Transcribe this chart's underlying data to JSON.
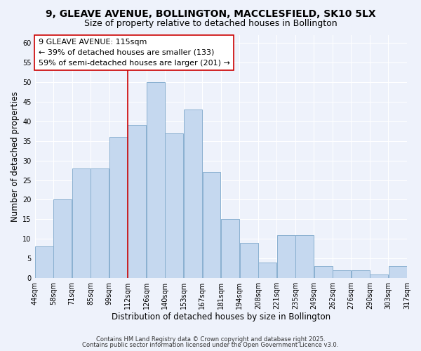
{
  "title": "9, GLEAVE AVENUE, BOLLINGTON, MACCLESFIELD, SK10 5LX",
  "subtitle": "Size of property relative to detached houses in Bollington",
  "xlabel": "Distribution of detached houses by size in Bollington",
  "ylabel": "Number of detached properties",
  "bar_labels": [
    "44sqm",
    "58sqm",
    "71sqm",
    "85sqm",
    "99sqm",
    "112sqm",
    "126sqm",
    "140sqm",
    "153sqm",
    "167sqm",
    "181sqm",
    "194sqm",
    "208sqm",
    "221sqm",
    "235sqm",
    "249sqm",
    "262sqm",
    "276sqm",
    "290sqm",
    "303sqm",
    "317sqm"
  ],
  "bar_values": [
    8,
    20,
    28,
    28,
    36,
    39,
    50,
    37,
    43,
    27,
    15,
    9,
    4,
    11,
    11,
    3,
    2,
    2,
    1,
    3
  ],
  "bar_colors_main": "#c5d8ef",
  "bar_edge_color": "#8ab0d0",
  "vline_color": "#cc0000",
  "annotation_text": "9 GLEAVE AVENUE: 115sqm\n← 39% of detached houses are smaller (133)\n59% of semi-detached houses are larger (201) →",
  "annotation_box_color": "#ffffff",
  "annotation_box_edge": "#cc0000",
  "ylim": [
    0,
    62
  ],
  "yticks": [
    0,
    5,
    10,
    15,
    20,
    25,
    30,
    35,
    40,
    45,
    50,
    55,
    60
  ],
  "footer1": "Contains HM Land Registry data © Crown copyright and database right 2025.",
  "footer2": "Contains public sector information licensed under the Open Government Licence v3.0.",
  "bg_color": "#eef2fb",
  "grid_color": "#ffffff",
  "title_fontsize": 10,
  "subtitle_fontsize": 9,
  "axis_label_fontsize": 8.5,
  "tick_fontsize": 7,
  "annotation_fontsize": 8,
  "footer_fontsize": 6
}
